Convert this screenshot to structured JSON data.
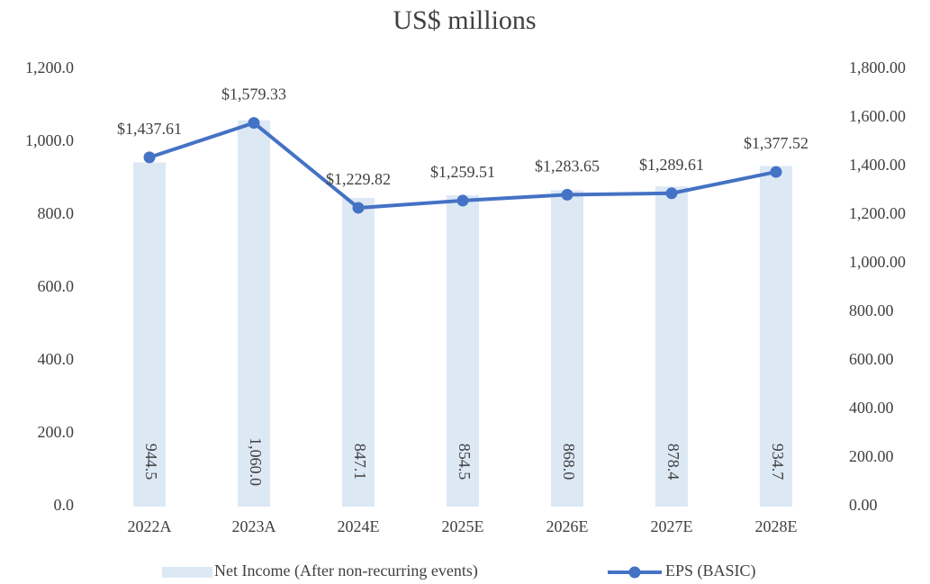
{
  "chart_data": {
    "type": "combo",
    "title": "US$ millions",
    "categories": [
      "2022A",
      "2023A",
      "2024E",
      "2025E",
      "2026E",
      "2027E",
      "2028E"
    ],
    "series": [
      {
        "name": "Net Income (After non-recurring events)",
        "type": "bar",
        "color": "#dde8f5",
        "values": [
          944.5,
          1060.0,
          847.1,
          854.5,
          868.0,
          878.4,
          934.7
        ],
        "value_labels": [
          "944.5",
          "1,060.0",
          "847.1",
          "854.5",
          "868.0",
          "878.4",
          "934.7"
        ]
      },
      {
        "name": "EPS (BASIC)",
        "type": "line",
        "axis": "y2",
        "color": "#4472c4",
        "values": [
          1437.61,
          1579.33,
          1229.82,
          1259.51,
          1283.65,
          1289.61,
          1377.52
        ],
        "value_labels": [
          "$1,437.61",
          "$1,579.33",
          "$1,229.82",
          "$1,259.51",
          "$1,283.65",
          "$1,289.61",
          "$1,377.52"
        ]
      }
    ],
    "ylim": [
      0,
      1200
    ],
    "yticks": [
      {
        "value": 0,
        "label": "0.0"
      },
      {
        "value": 200,
        "label": "200.0"
      },
      {
        "value": 400,
        "label": "400.0"
      },
      {
        "value": 600,
        "label": "600.0"
      },
      {
        "value": 800,
        "label": "800.0"
      },
      {
        "value": 1000,
        "label": "1,000.0"
      },
      {
        "value": 1200,
        "label": "1,200.0"
      }
    ],
    "y2lim": [
      0,
      1800
    ],
    "y2ticks": [
      {
        "value": 0,
        "label": "0.00"
      },
      {
        "value": 200,
        "label": "200.00"
      },
      {
        "value": 400,
        "label": "400.00"
      },
      {
        "value": 600,
        "label": "600.00"
      },
      {
        "value": 800,
        "label": "800.00"
      },
      {
        "value": 1000,
        "label": "1,000.00"
      },
      {
        "value": 1200,
        "label": "1,200.00"
      },
      {
        "value": 1400,
        "label": "1,400.00"
      },
      {
        "value": 1600,
        "label": "1,600.00"
      },
      {
        "value": 1800,
        "label": "1,800.00"
      }
    ],
    "grid": false,
    "legend": "bottom"
  }
}
